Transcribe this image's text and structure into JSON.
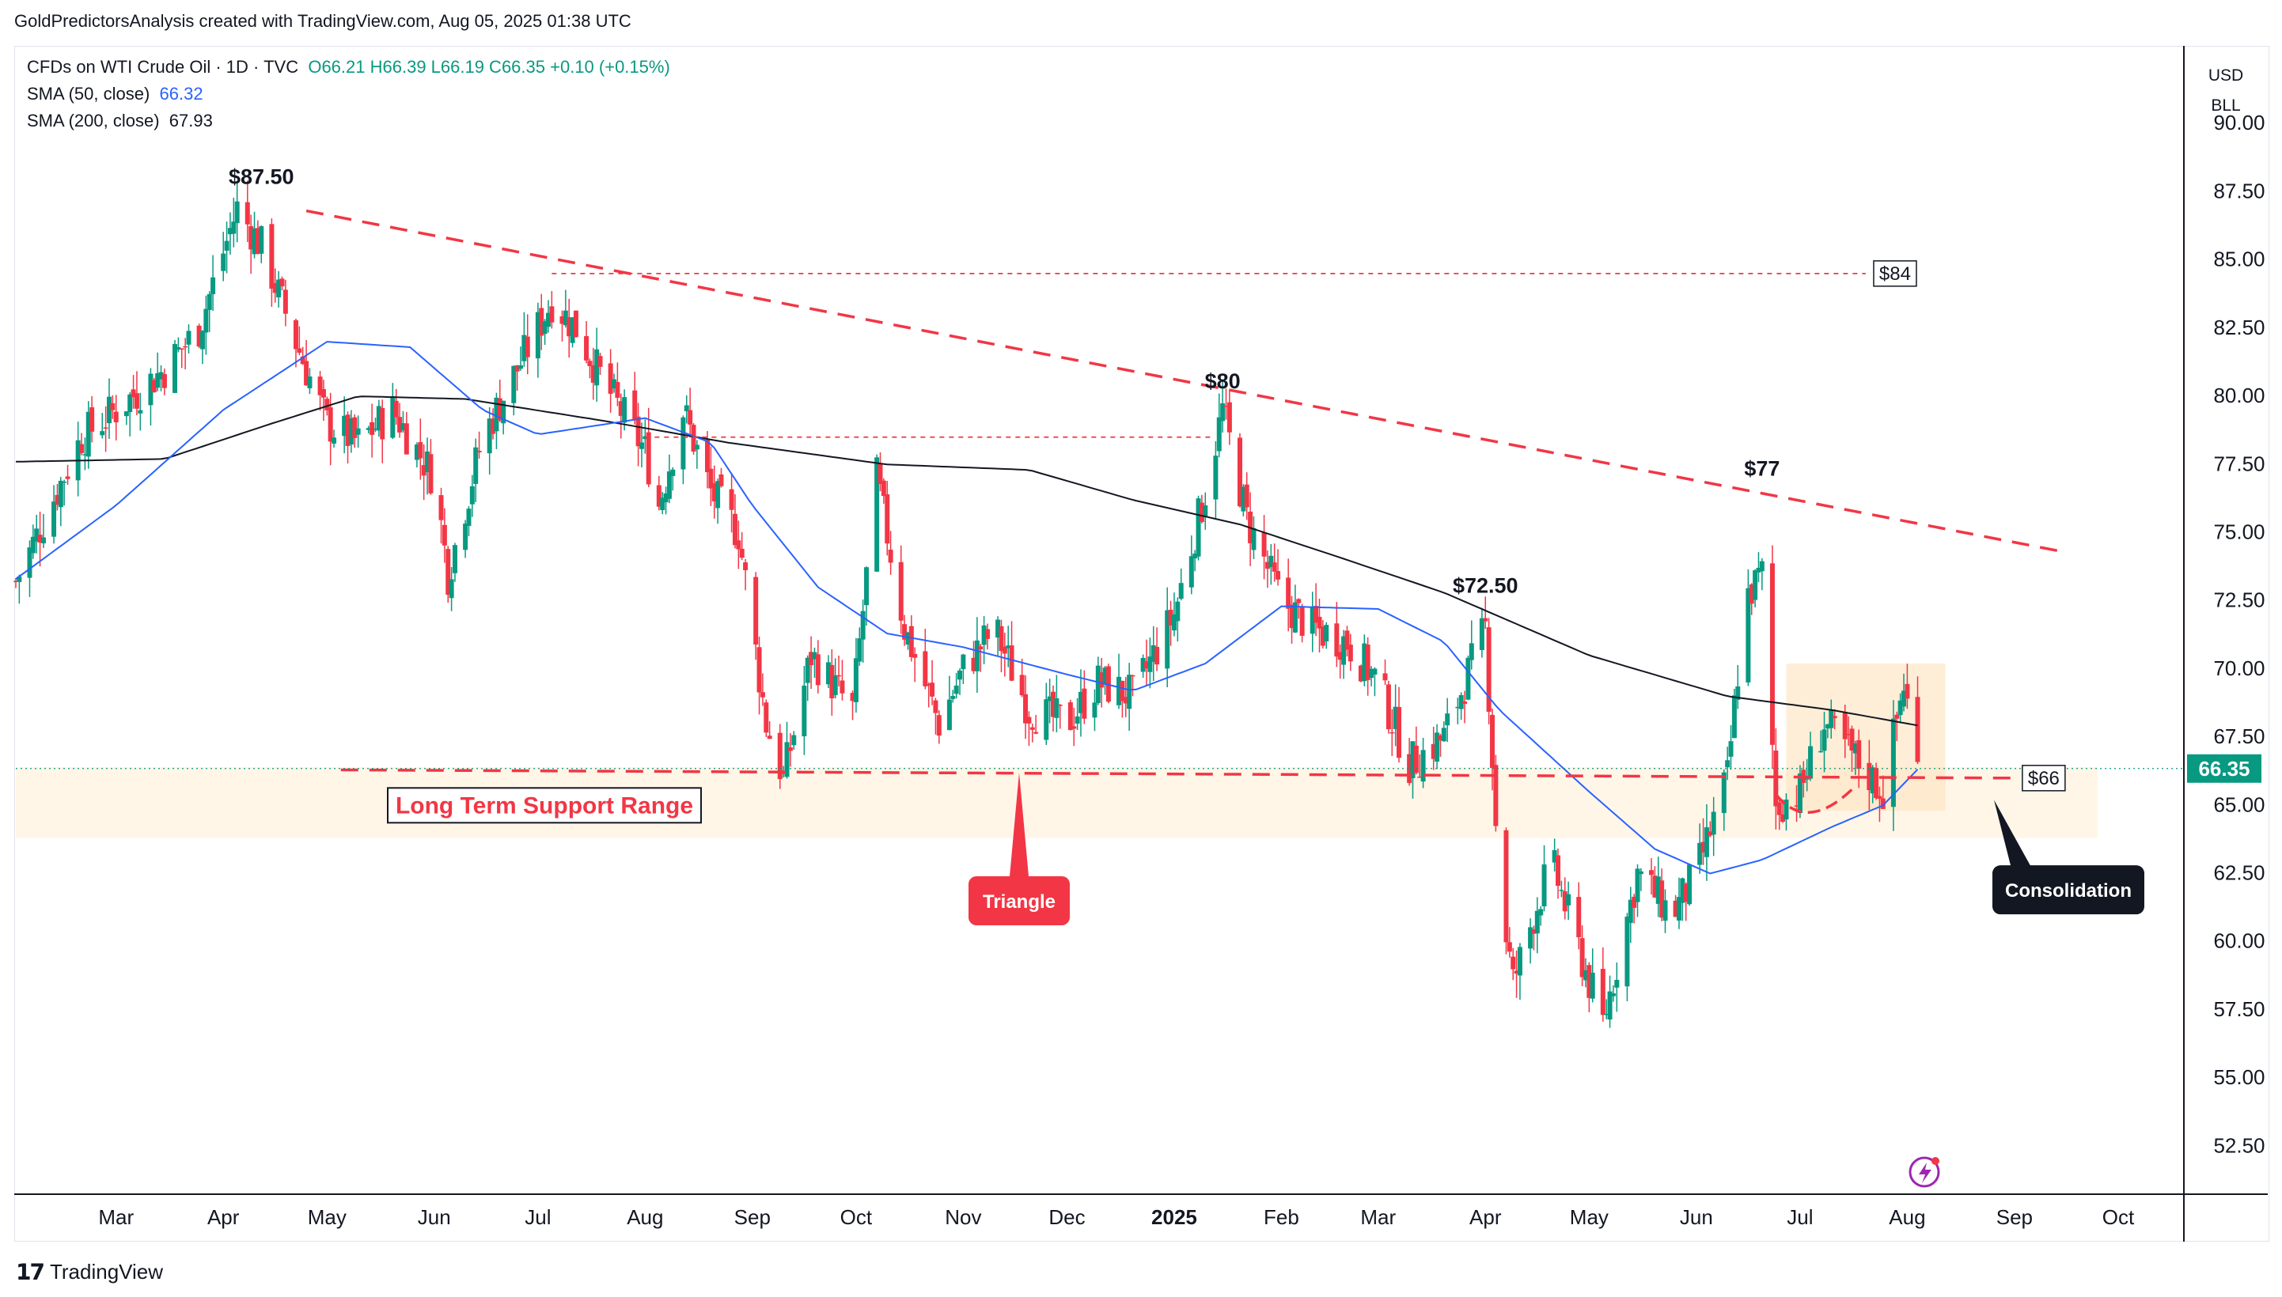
{
  "header": {
    "caption": "GoldPredictorsAnalysis created with TradingView.com, Aug 05, 2025 01:38 UTC"
  },
  "legend": {
    "symbol": "CFDs on WTI Crude Oil · 1D · TVC",
    "ohlc": "O66.21  H66.39  L66.19  C66.35  +0.10 (+0.15%)",
    "sma50_label": "SMA (50, close)",
    "sma50_value": "66.32",
    "sma200_label": "SMA (200, close)",
    "sma200_value": "67.93"
  },
  "axis_header": {
    "currency": "USD",
    "unit": "BLL"
  },
  "footer": {
    "brand": "TradingView"
  },
  "colors": {
    "up": "#089981",
    "down": "#f23645",
    "sma50": "#2962ff",
    "sma200": "#131722",
    "annotation_red": "#f23645",
    "zone_fill": "#fff3e0"
  },
  "chart_data": {
    "type": "candlestick",
    "y_ticks": [
      "90.00",
      "87.50",
      "85.00",
      "82.50",
      "80.00",
      "77.50",
      "75.00",
      "72.50",
      "70.00",
      "67.50",
      "65.00",
      "62.50",
      "60.00",
      "57.50",
      "55.00",
      "52.50"
    ],
    "ylim": [
      50.8,
      92.5
    ],
    "x_labels": [
      {
        "text": "Mar",
        "date": "2024-03-01",
        "bold": false
      },
      {
        "text": "Apr",
        "date": "2024-04-01",
        "bold": false
      },
      {
        "text": "May",
        "date": "2024-05-01",
        "bold": false
      },
      {
        "text": "Jun",
        "date": "2024-06-01",
        "bold": false
      },
      {
        "text": "Jul",
        "date": "2024-07-01",
        "bold": false
      },
      {
        "text": "Aug",
        "date": "2024-08-01",
        "bold": false
      },
      {
        "text": "Sep",
        "date": "2024-09-01",
        "bold": false
      },
      {
        "text": "Oct",
        "date": "2024-10-01",
        "bold": false
      },
      {
        "text": "Nov",
        "date": "2024-11-01",
        "bold": false
      },
      {
        "text": "Dec",
        "date": "2024-12-01",
        "bold": false
      },
      {
        "text": "2025",
        "date": "2025-01-01",
        "bold": true
      },
      {
        "text": "Feb",
        "date": "2025-02-01",
        "bold": false
      },
      {
        "text": "Mar",
        "date": "2025-03-01",
        "bold": false
      },
      {
        "text": "Apr",
        "date": "2025-04-01",
        "bold": false
      },
      {
        "text": "May",
        "date": "2025-05-01",
        "bold": false
      },
      {
        "text": "Jun",
        "date": "2025-06-01",
        "bold": false
      },
      {
        "text": "Jul",
        "date": "2025-07-01",
        "bold": false
      },
      {
        "text": "Aug",
        "date": "2025-08-01",
        "bold": false
      },
      {
        "text": "Sep",
        "date": "2025-09-01",
        "bold": false
      },
      {
        "text": "Oct",
        "date": "2025-10-01",
        "bold": false
      }
    ],
    "x_range": [
      "2024-02-01",
      "2025-10-20"
    ],
    "last_price": "66.35",
    "close_path": [
      [
        "2024-02-01",
        73.2
      ],
      [
        "2024-02-20",
        78.5
      ],
      [
        "2024-03-01",
        79.5
      ],
      [
        "2024-03-15",
        81.0
      ],
      [
        "2024-03-25",
        82.5
      ],
      [
        "2024-04-05",
        86.9
      ],
      [
        "2024-04-12",
        85.5
      ],
      [
        "2024-04-22",
        82.0
      ],
      [
        "2024-05-01",
        79.0
      ],
      [
        "2024-05-10",
        78.3
      ],
      [
        "2024-05-20",
        79.5
      ],
      [
        "2024-06-01",
        77.0
      ],
      [
        "2024-06-05",
        73.5
      ],
      [
        "2024-06-15",
        78.5
      ],
      [
        "2024-06-25",
        81.0
      ],
      [
        "2024-07-05",
        83.5
      ],
      [
        "2024-07-12",
        82.5
      ],
      [
        "2024-07-20",
        80.5
      ],
      [
        "2024-08-01",
        78.0
      ],
      [
        "2024-08-05",
        76.0
      ],
      [
        "2024-08-12",
        79.5
      ],
      [
        "2024-08-20",
        76.5
      ],
      [
        "2024-08-28",
        75.0
      ],
      [
        "2024-09-05",
        68.0
      ],
      [
        "2024-09-10",
        66.0
      ],
      [
        "2024-09-18",
        70.5
      ],
      [
        "2024-09-30",
        68.5
      ],
      [
        "2024-10-07",
        77.0
      ],
      [
        "2024-10-15",
        71.5
      ],
      [
        "2024-10-25",
        68.0
      ],
      [
        "2024-11-01",
        70.0
      ],
      [
        "2024-11-10",
        71.5
      ],
      [
        "2024-11-20",
        68.5
      ],
      [
        "2024-12-01",
        68.0
      ],
      [
        "2024-12-10",
        69.5
      ],
      [
        "2024-12-20",
        69.0
      ],
      [
        "2025-01-01",
        72.0
      ],
      [
        "2025-01-10",
        76.5
      ],
      [
        "2025-01-15",
        79.5
      ],
      [
        "2025-01-22",
        75.5
      ],
      [
        "2025-02-01",
        72.5
      ],
      [
        "2025-02-10",
        71.5
      ],
      [
        "2025-02-20",
        71.0
      ],
      [
        "2025-03-01",
        69.5
      ],
      [
        "2025-03-10",
        66.5
      ],
      [
        "2025-03-20",
        67.5
      ],
      [
        "2025-04-01",
        71.5
      ],
      [
        "2025-04-05",
        62.0
      ],
      [
        "2025-04-09",
        58.5
      ],
      [
        "2025-04-20",
        63.0
      ],
      [
        "2025-05-01",
        58.5
      ],
      [
        "2025-05-05",
        57.0
      ],
      [
        "2025-05-15",
        62.5
      ],
      [
        "2025-05-25",
        61.0
      ],
      [
        "2025-06-01",
        62.5
      ],
      [
        "2025-06-10",
        66.0
      ],
      [
        "2025-06-15",
        72.5
      ],
      [
        "2025-06-20",
        73.5
      ],
      [
        "2025-06-24",
        65.0
      ],
      [
        "2025-07-01",
        65.5
      ],
      [
        "2025-07-08",
        68.0
      ],
      [
        "2025-07-15",
        67.0
      ],
      [
        "2025-07-25",
        65.5
      ],
      [
        "2025-07-31",
        69.5
      ],
      [
        "2025-08-04",
        66.35
      ]
    ],
    "sma50": [
      [
        "2024-02-01",
        73.3
      ],
      [
        "2024-03-01",
        76.0
      ],
      [
        "2024-04-01",
        79.5
      ],
      [
        "2024-05-01",
        82.0
      ],
      [
        "2024-05-25",
        81.8
      ],
      [
        "2024-06-15",
        79.5
      ],
      [
        "2024-07-01",
        78.6
      ],
      [
        "2024-08-01",
        79.2
      ],
      [
        "2024-08-20",
        78.3
      ],
      [
        "2024-09-01",
        76.0
      ],
      [
        "2024-09-20",
        73.0
      ],
      [
        "2024-10-10",
        71.3
      ],
      [
        "2024-11-01",
        70.8
      ],
      [
        "2024-12-01",
        69.8
      ],
      [
        "2024-12-20",
        69.2
      ],
      [
        "2025-01-10",
        70.2
      ],
      [
        "2025-02-01",
        72.3
      ],
      [
        "2025-03-01",
        72.2
      ],
      [
        "2025-03-20",
        71.0
      ],
      [
        "2025-04-05",
        68.5
      ],
      [
        "2025-05-01",
        65.5
      ],
      [
        "2025-05-20",
        63.4
      ],
      [
        "2025-06-05",
        62.5
      ],
      [
        "2025-06-20",
        63.0
      ],
      [
        "2025-07-10",
        64.2
      ],
      [
        "2025-07-25",
        65.0
      ],
      [
        "2025-08-04",
        66.32
      ]
    ],
    "sma200": [
      [
        "2024-02-01",
        77.6
      ],
      [
        "2024-03-15",
        77.7
      ],
      [
        "2024-04-15",
        79.0
      ],
      [
        "2024-05-10",
        80.0
      ],
      [
        "2024-06-10",
        79.9
      ],
      [
        "2024-07-20",
        79.1
      ],
      [
        "2024-08-25",
        78.3
      ],
      [
        "2024-10-10",
        77.5
      ],
      [
        "2024-11-20",
        77.3
      ],
      [
        "2024-12-20",
        76.2
      ],
      [
        "2025-01-20",
        75.3
      ],
      [
        "2025-02-20",
        74.0
      ],
      [
        "2025-03-20",
        72.8
      ],
      [
        "2025-05-01",
        70.5
      ],
      [
        "2025-06-10",
        69.0
      ],
      [
        "2025-07-10",
        68.5
      ],
      [
        "2025-08-04",
        67.93
      ]
    ],
    "annotations": {
      "peak_labels": [
        {
          "text": "$87.50",
          "date": "2024-04-12",
          "price": 87.5
        },
        {
          "text": "$80",
          "date": "2025-01-15",
          "price": 80.0
        },
        {
          "text": "$77",
          "date": "2025-06-20",
          "price": 76.8
        },
        {
          "text": "$72.50",
          "date": "2025-04-01",
          "price": 72.5
        }
      ],
      "downtrend_line": {
        "from": [
          "2024-04-25",
          86.8
        ],
        "to": [
          "2025-09-15",
          74.3
        ]
      },
      "dotted_84": {
        "from": [
          "2024-07-05",
          84.5
        ],
        "to": [
          "2025-07-20",
          84.5
        ],
        "tag": "$84"
      },
      "dotted_80": {
        "from": [
          "2024-08-01",
          78.5
        ],
        "to": [
          "2025-01-12",
          78.5
        ]
      },
      "support_line": {
        "from": [
          "2024-05-05",
          66.3
        ],
        "to": [
          "2025-09-01",
          66.0
        ],
        "tag": "$66"
      },
      "support_zone": {
        "from": "2024-02-01",
        "to": "2025-09-25",
        "top": 66.4,
        "bottom": 63.8
      },
      "support_label": "Long Term Support Range",
      "triangle_label": "Triangle",
      "consolidation_label": "Consolidation",
      "consolidation_box": {
        "from": "2025-06-27",
        "to": "2025-08-12",
        "top": 70.2,
        "bottom": 64.8
      }
    }
  }
}
